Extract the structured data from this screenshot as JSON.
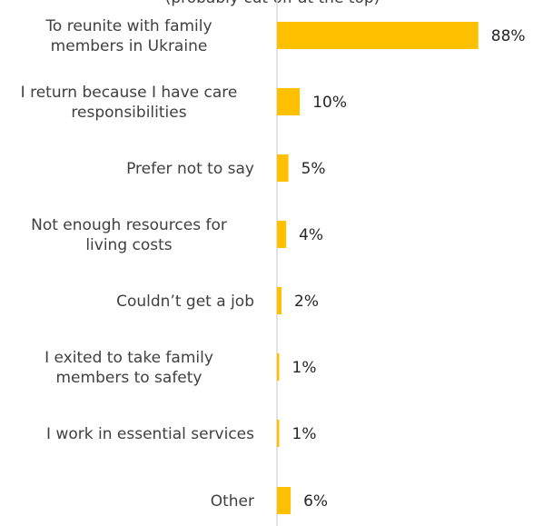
{
  "chart_data": {
    "type": "bar",
    "orientation": "horizontal",
    "title_fragment": "(probably cut off at the top)",
    "categories": [
      [
        "To reunite with family",
        "members in Ukraine"
      ],
      [
        "I return because I have care",
        "responsibilities"
      ],
      [
        "Prefer not to say"
      ],
      [
        "Not enough resources for",
        "living costs"
      ],
      [
        "Couldn’t get a job"
      ],
      [
        "I exited to take family",
        "members to safety"
      ],
      [
        "I work in essential services"
      ],
      [
        "Other"
      ]
    ],
    "values": [
      88,
      10,
      5,
      4,
      2,
      1,
      1,
      6
    ],
    "value_labels": [
      "88%",
      "10%",
      "5%",
      "4%",
      "2%",
      "1%",
      "1%",
      "6%"
    ],
    "unit": "%",
    "xlim": [
      0,
      100
    ],
    "bar_color": "#FFC000",
    "axis_color": "#D9D9D9",
    "legend": "none",
    "grid": false
  }
}
